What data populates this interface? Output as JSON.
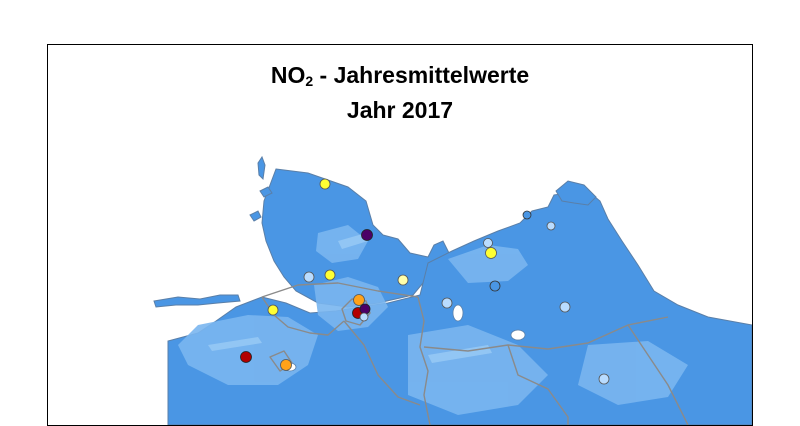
{
  "map": {
    "title_prefix": "NO",
    "title_subscript": "2",
    "title_suffix": " - Jahresmittelwerte",
    "subtitle": "Jahr 2017",
    "colors": {
      "background_band": "#4a96e4",
      "urban_band": "#7ab6f0",
      "stripe_band": "#9acbf5",
      "county_borders": "#8a8a8a",
      "coastline": "#5a7fa8"
    },
    "stations": [
      {
        "id": "s1",
        "level": "low",
        "color": "#ffff33"
      },
      {
        "id": "s2",
        "level": "very-high",
        "color": "#4b0066"
      },
      {
        "id": "s3",
        "level": "low",
        "color": "#ffff33"
      },
      {
        "id": "s4",
        "level": "very-low",
        "color": "#b9dcff"
      },
      {
        "id": "s5",
        "level": "low",
        "color": "#ffff33"
      },
      {
        "id": "s6",
        "level": "low",
        "color": "#ffffaa"
      },
      {
        "id": "s7",
        "level": "medium",
        "color": "#ffa21a"
      },
      {
        "id": "s8",
        "level": "high",
        "color": "#b30000"
      },
      {
        "id": "s9",
        "level": "very-high",
        "color": "#4b0066"
      },
      {
        "id": "s10",
        "level": "very-low",
        "color": "#b9dcff"
      },
      {
        "id": "s11",
        "level": "low",
        "color": "#ffff33"
      },
      {
        "id": "s12",
        "level": "high",
        "color": "#b30000"
      },
      {
        "id": "s13",
        "level": "medium",
        "color": "#ffa21a"
      },
      {
        "id": "s14",
        "level": "very-low",
        "color": "#b9dcff"
      },
      {
        "id": "s15",
        "level": "low",
        "color": "#ffff33"
      },
      {
        "id": "s16",
        "level": "very-low",
        "color": "#4a96e4"
      },
      {
        "id": "s17",
        "level": "very-low",
        "color": "#b9dcff"
      },
      {
        "id": "s18",
        "level": "very-low",
        "color": "#b9dcff"
      },
      {
        "id": "s19",
        "level": "very-low",
        "color": "#b9dcff"
      },
      {
        "id": "s20",
        "level": "very-low",
        "color": "#4a96e4"
      },
      {
        "id": "s21",
        "level": "very-low",
        "color": "#b9dcff"
      }
    ]
  }
}
